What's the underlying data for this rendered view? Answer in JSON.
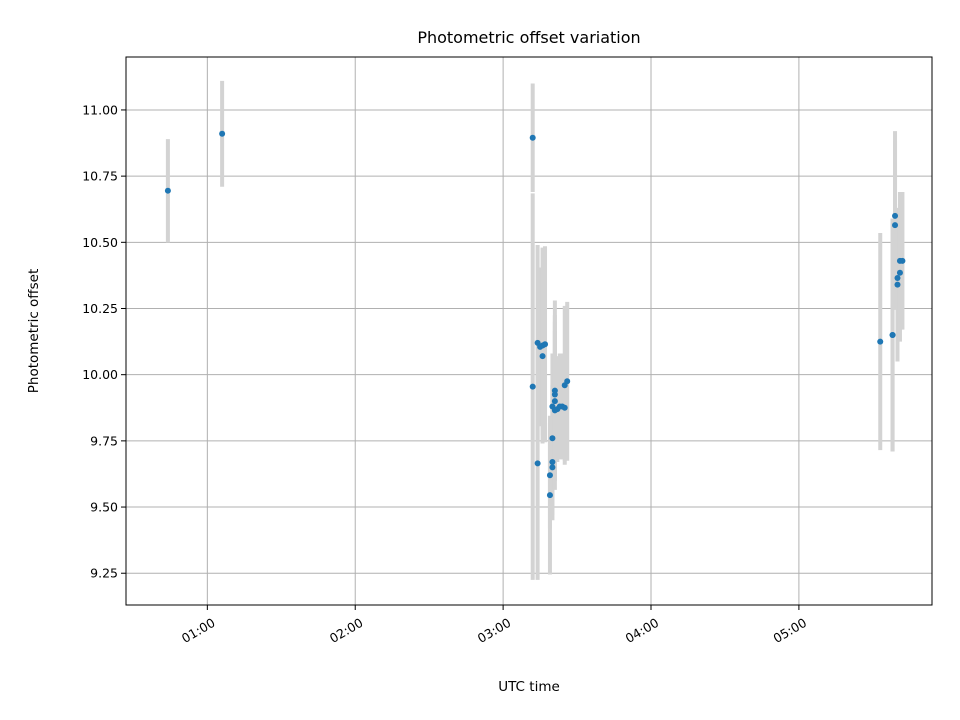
{
  "chart_data": {
    "type": "scatter",
    "title": "Photometric offset variation",
    "xlabel": "UTC time",
    "ylabel": "Photometric offset",
    "xlim_hours": [
      0.45,
      5.9
    ],
    "ylim": [
      9.13,
      11.2
    ],
    "x_ticks": [
      {
        "hour": 1,
        "label": "01:00"
      },
      {
        "hour": 2,
        "label": "02:00"
      },
      {
        "hour": 3,
        "label": "03:00"
      },
      {
        "hour": 4,
        "label": "04:00"
      },
      {
        "hour": 5,
        "label": "05:00"
      }
    ],
    "y_ticks": [
      {
        "value": 9.25,
        "label": "9.25"
      },
      {
        "value": 9.5,
        "label": "9.50"
      },
      {
        "value": 9.75,
        "label": "9.75"
      },
      {
        "value": 10.0,
        "label": "10.00"
      },
      {
        "value": 10.25,
        "label": "10.25"
      },
      {
        "value": 10.5,
        "label": "10.50"
      },
      {
        "value": 10.75,
        "label": "10.75"
      },
      {
        "value": 11.0,
        "label": "11.00"
      }
    ],
    "grid": true,
    "colors": {
      "point": "#1f77b4",
      "errorbar": "#d3d3d3"
    },
    "points": [
      {
        "time": "00:44",
        "y": 10.695,
        "err": 0.195
      },
      {
        "time": "01:06",
        "y": 10.91,
        "err": 0.2
      },
      {
        "time": "03:12",
        "y": 10.895,
        "err": 0.205
      },
      {
        "time": "03:12",
        "y": 9.955,
        "err": 0.73
      },
      {
        "time": "03:14",
        "y": 9.665,
        "err": 0.44
      },
      {
        "time": "03:14",
        "y": 10.12,
        "err": 0.37
      },
      {
        "time": "03:15",
        "y": 10.105,
        "err": 0.3
      },
      {
        "time": "03:16",
        "y": 10.07,
        "err": 0.3
      },
      {
        "time": "03:16",
        "y": 10.11,
        "err": 0.37
      },
      {
        "time": "03:17",
        "y": 10.115,
        "err": 0.37
      },
      {
        "time": "03:19",
        "y": 9.545,
        "err": 0.3
      },
      {
        "time": "03:19",
        "y": 9.62,
        "err": 0.2
      },
      {
        "time": "03:20",
        "y": 9.65,
        "err": 0.2
      },
      {
        "time": "03:20",
        "y": 9.67,
        "err": 0.2
      },
      {
        "time": "03:20",
        "y": 9.76,
        "err": 0.2
      },
      {
        "time": "03:20",
        "y": 9.88,
        "err": 0.2
      },
      {
        "time": "03:21",
        "y": 9.865,
        "err": 0.3
      },
      {
        "time": "03:21",
        "y": 9.9,
        "err": 0.3
      },
      {
        "time": "03:21",
        "y": 9.925,
        "err": 0.3
      },
      {
        "time": "03:21",
        "y": 9.94,
        "err": 0.34
      },
      {
        "time": "03:22",
        "y": 9.87,
        "err": 0.2
      },
      {
        "time": "03:23",
        "y": 9.88,
        "err": 0.2
      },
      {
        "time": "03:24",
        "y": 9.88,
        "err": 0.2
      },
      {
        "time": "03:25",
        "y": 9.875,
        "err": 0.2
      },
      {
        "time": "03:25",
        "y": 9.96,
        "err": 0.3
      },
      {
        "time": "03:26",
        "y": 9.975,
        "err": 0.3
      },
      {
        "time": "05:33",
        "y": 10.125,
        "err": 0.41
      },
      {
        "time": "05:38",
        "y": 10.15,
        "err": 0.44
      },
      {
        "time": "05:38",
        "y": 10.15,
        "err": 0.44
      },
      {
        "time": "05:39",
        "y": 10.6,
        "err": 0.32
      },
      {
        "time": "05:39",
        "y": 10.565,
        "err": 0.32
      },
      {
        "time": "05:40",
        "y": 10.34,
        "err": 0.29
      },
      {
        "time": "05:40",
        "y": 10.365,
        "err": 0.26
      },
      {
        "time": "05:41",
        "y": 10.385,
        "err": 0.26
      },
      {
        "time": "05:41",
        "y": 10.43,
        "err": 0.26
      },
      {
        "time": "05:42",
        "y": 10.43,
        "err": 0.26
      }
    ]
  }
}
